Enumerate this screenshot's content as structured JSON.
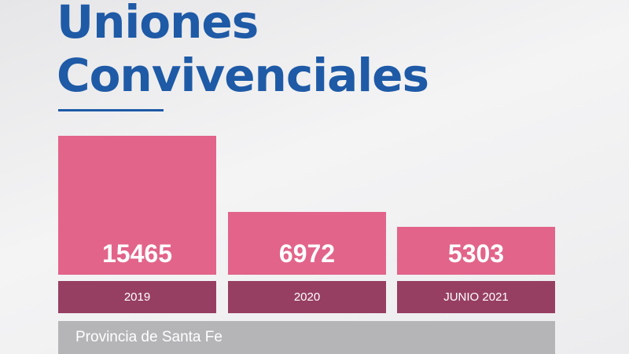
{
  "chart_data": {
    "type": "bar",
    "title": "Uniones Convivenciales",
    "title_lines": [
      "Uniones",
      "Convivenciales"
    ],
    "categories": [
      "2019",
      "2020",
      "JUNIO 2021"
    ],
    "values": [
      15465,
      6972,
      5303
    ],
    "footer": "Provincia de Santa Fe",
    "colors": {
      "title": "#1e5aa6",
      "bar": "#e2648a",
      "category": "#973f62",
      "footer": "#b5b5b8"
    }
  }
}
